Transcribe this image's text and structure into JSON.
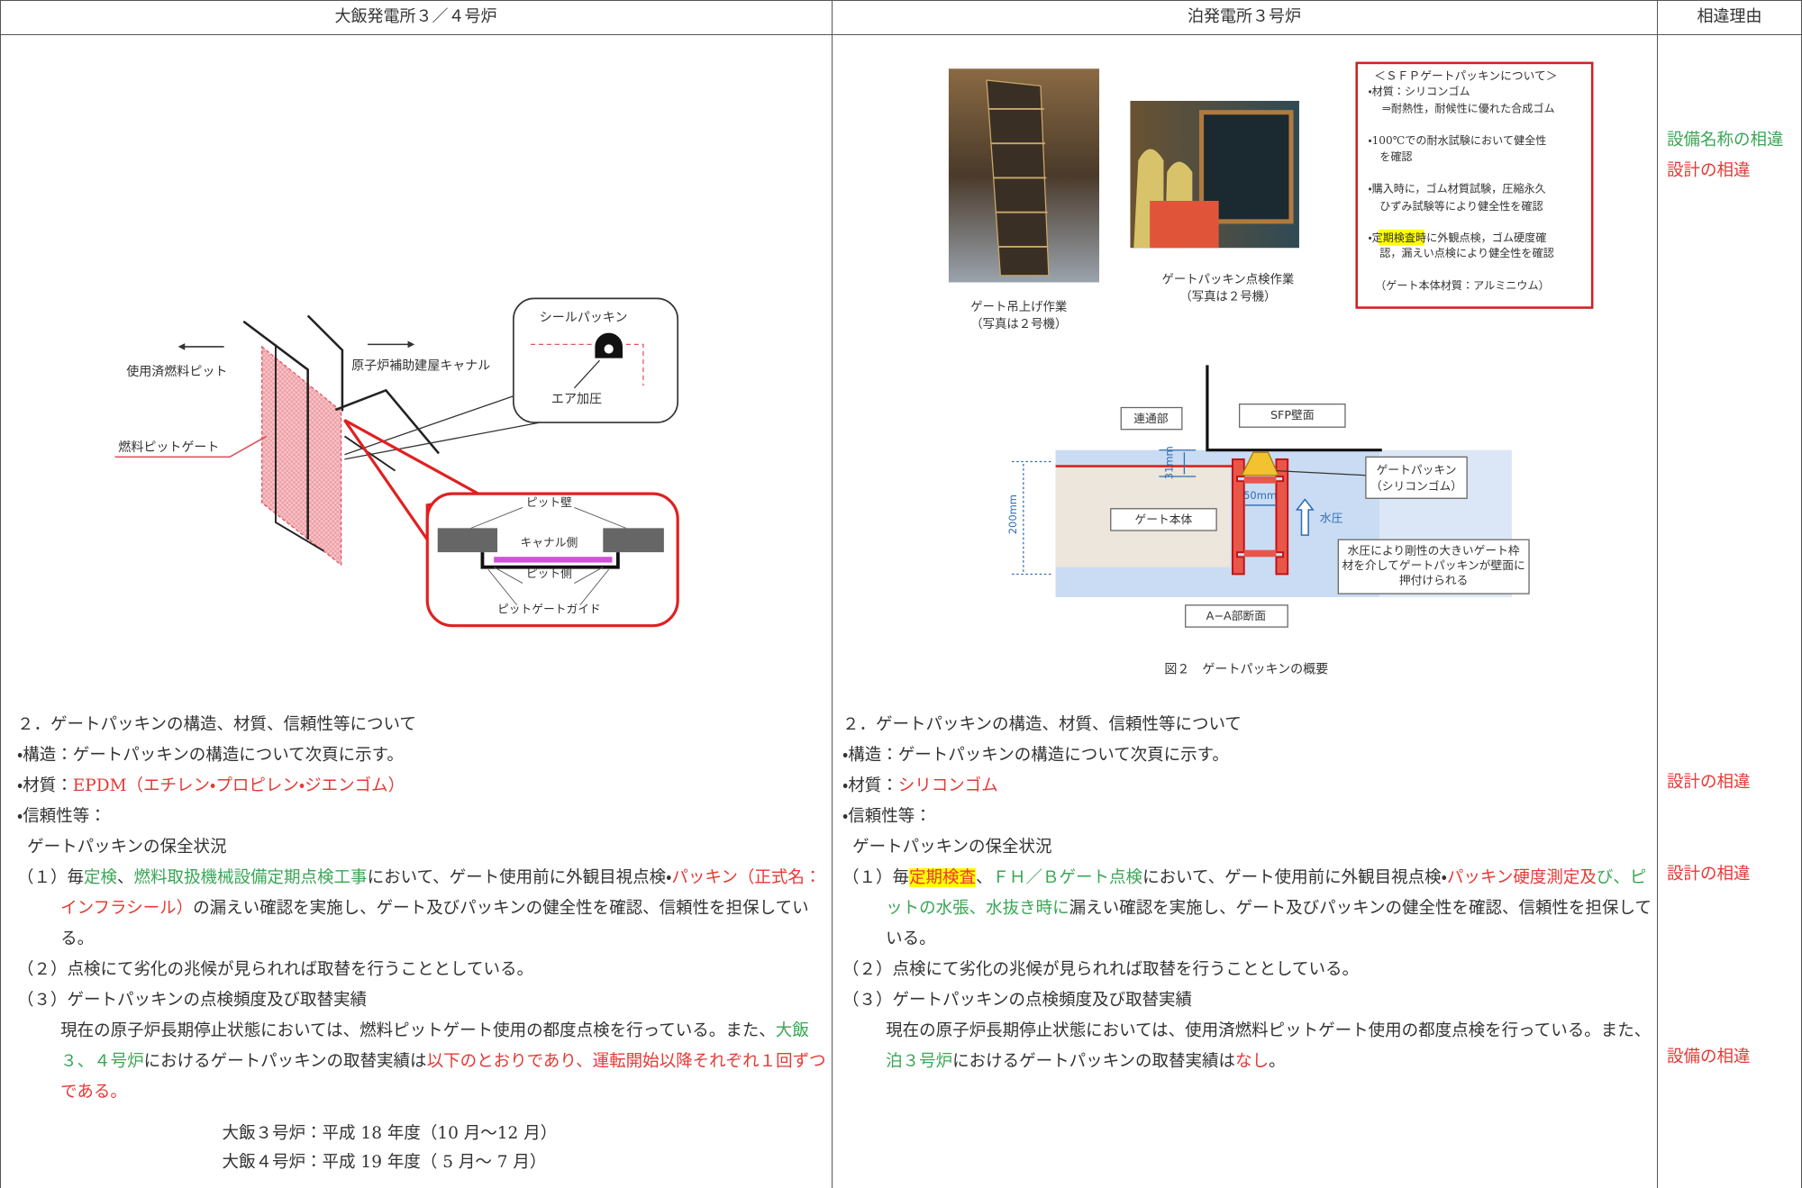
{
  "header": {
    "left": "大飯発電所３／４号炉",
    "middle": "泊発電所３号炉",
    "right": "相違理由"
  },
  "left": {
    "diagram": {
      "spent_fuel_pit": "使用済燃料ピット",
      "canal": "原子炉補助建屋キャナル",
      "pit_gate": "燃料ピットゲート",
      "seal_packing": "シールパッキン",
      "air": "エア加圧",
      "pit_wall": "ピット壁",
      "canal_side": "キャナル側",
      "pit_side": "ピット側",
      "gate_guide": "ピットゲートガイド"
    },
    "paragraphs": [
      [
        "２．ゲートパッキンの構造、材質、信頼性等について"
      ],
      [
        "・構造：ゲートパッキンの構造について次頁に示す。"
      ],
      [
        "・材質：",
        {
          "text": "EPDM（エチレン・プロピレン・ジエンゴム）",
          "color": "#e53935"
        }
      ],
      [
        "・信頼性等："
      ],
      [
        "ゲートパッキンの保全状況"
      ],
      [
        "（１）毎",
        {
          "text": "定検",
          "color": "#3aa655"
        },
        "、",
        {
          "text": "燃料取扱機械設備定期点検工事",
          "color": "#3aa655"
        },
        "において、ゲート使用前に外観目視点検・",
        {
          "text": "パッキン（正式名：インフラシール）",
          "color": "#e53935"
        },
        "の漏えい確認を実施し、ゲート及びパッキンの健全性を確認、信頼性を担保している。"
      ],
      [
        "（２）点検にて劣化の兆候が見られれば取替を行うこととしている。"
      ],
      [
        "（３）ゲートパッキンの点検頻度及び取替実績"
      ],
      [
        "現在の原子炉長期停止状態においては、燃料ピットゲート使用の都度点検を行っている。また、",
        {
          "text": "大飯３、４号炉",
          "color": "#3aa655"
        },
        "におけるゲートパッキンの取替実績は",
        {
          "text": "以下のとおりであり、運転開始以降それぞれ１回ずつである。",
          "color": "#e53935"
        }
      ],
      [
        "大飯３号炉：平成 18 年度（10 月～12 月）"
      ],
      [
        "大飯４号炉：平成 19 年度（ 5 月～ 7 月）"
      ]
    ]
  },
  "middle": {
    "photos": [
      {
        "caption": [
          "ゲート吊上げ作業",
          "（写真は２号機）"
        ]
      },
      {
        "caption": [
          "ゲートパッキン点検作業",
          "（写真は２号機）"
        ]
      }
    ],
    "box": {
      "title": "＜ＳＦＰゲートパッキンについて＞",
      "lines": [
        "・材質：シリコンゴム",
        "⇒耐熱性，耐候性に優れた合成ゴム",
        "・100℃での耐水試験において健全性",
        "を確認",
        "・購入時に，ゴム材質試験，圧縮永久",
        "ひずみ試験等により健全性を確認",
        [
          "・",
          {
            "text": "定期検査",
            "highlight": "#ffff00"
          },
          "時に外観点検，ゴム硬度確"
        ],
        "認，漏えい点検により健全性を確認",
        "（ゲート本体材質：アルミニウム）"
      ]
    },
    "diagram": {
      "connection": "連通部",
      "sfp_wall": "SFP壁面",
      "dim_31": "31mm",
      "dim_200": "200mm",
      "dim_50": "50mm",
      "gate_body": "ゲート本体",
      "pressure": "水圧",
      "packing": [
        "ゲートパッキン",
        "（シリコンゴム）"
      ],
      "note": [
        "水圧により剛性の大きいゲート枠",
        "材を介してゲートパッキンが壁面に",
        "押付けられる"
      ],
      "section": "A−A部断面"
    },
    "figure_caption": "図２　ゲートパッキンの概要",
    "paragraphs": [
      [
        "２．ゲートパッキンの構造、材質、信頼性等について"
      ],
      [
        "・構造：ゲートパッキンの構造について次頁に示す。"
      ],
      [
        "・材質：",
        {
          "text": "シリコンゴム",
          "color": "#e53935"
        }
      ],
      [
        "・信頼性等："
      ],
      [
        "ゲートパッキンの保全状況"
      ],
      [
        "（１）毎",
        {
          "text": "定期検査",
          "color": "#e53935",
          "highlight": "#ffff00"
        },
        "、",
        {
          "text": "ＦＨ／Ｂゲート点検",
          "color": "#3aa655"
        },
        "において、ゲート使用前に外観目視点検・",
        {
          "text": "パッキン硬度測定及",
          "color": "#e53935"
        },
        {
          "text": "び、ピットの水張、水抜き時に",
          "color": "#3aa655"
        },
        "漏えい確認を実施し、ゲート及びパッキンの健全性を確認、信頼性を担保している。"
      ],
      [
        "（２）点検にて劣化の兆候が見られれば取替を行うこととしている。"
      ],
      [
        "（３）ゲートパッキンの点検頻度及び取替実績"
      ],
      [
        "現在の原子炉長期停止状態においては、使用済燃料ピットゲート使用の都度点検を行っている。また、",
        {
          "text": "泊３号炉",
          "color": "#3aa655"
        },
        "におけるゲートパッキンの取替実績は",
        {
          "text": "なし",
          "color": "#e53935"
        },
        "。"
      ]
    ]
  },
  "reasons": [
    {
      "text": "設備名称の相違",
      "color": "#3aa655"
    },
    {
      "text": "設計の相違",
      "color": "#e53935"
    },
    {
      "text": "設計の相違",
      "color": "#e53935"
    },
    {
      "text": "設計の相違",
      "color": "#e53935"
    },
    {
      "text": "設備の相違",
      "color": "#e53935"
    }
  ]
}
